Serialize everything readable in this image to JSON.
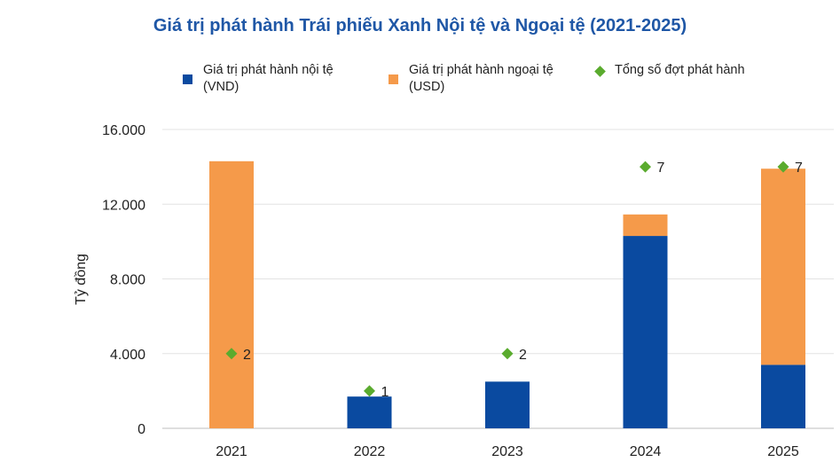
{
  "chart_data": {
    "type": "bar",
    "stacked": true,
    "title": "Giá trị phát hành Trái phiếu Xanh Nội tệ và Ngoại tệ (2021-2025)",
    "ylabel": "Tỷ đồng",
    "xlabel": "",
    "ylim": [
      0,
      16000
    ],
    "yticks": [
      "0",
      "4.000",
      "8.000",
      "12.000",
      "16.000"
    ],
    "ytick_values": [
      0,
      4000,
      8000,
      12000,
      16000
    ],
    "grid": true,
    "legend_position": "top",
    "categories": [
      "2021",
      "2022",
      "2023",
      "2024",
      "2025"
    ],
    "series": [
      {
        "name": "Giá trị phát hành nội tệ\n(VND)",
        "color": "#0a4aa0",
        "values": [
          0,
          1700,
          2500,
          10300,
          3400
        ]
      },
      {
        "name": "Giá trị phát hành ngoại tệ\n(USD)",
        "color": "#f59a4a",
        "values": [
          14300,
          0,
          0,
          1150,
          10500
        ]
      }
    ],
    "markers": {
      "name": "Tổng số đợt phát hành",
      "color": "#5aab2e",
      "values": [
        2,
        1,
        2,
        7,
        7
      ],
      "marker_y": [
        4000,
        2000,
        4000,
        14000,
        14000
      ],
      "labels": [
        "2",
        "1",
        "2",
        "7",
        "7"
      ]
    }
  }
}
